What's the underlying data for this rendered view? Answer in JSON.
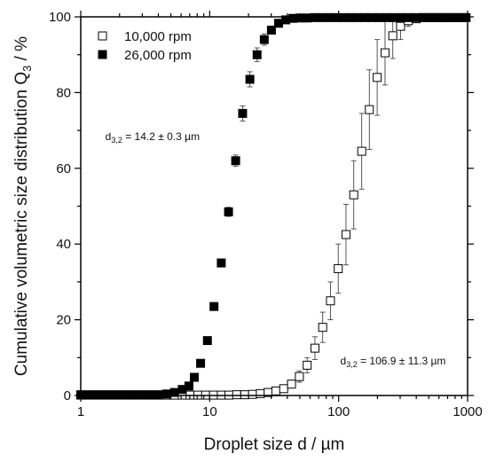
{
  "chart_data": {
    "type": "scatter",
    "title": "",
    "xlabel": "Droplet size d / µm",
    "ylabel_main": "Cumulative volumetric size distribution Q",
    "ylabel_sub": "3",
    "ylabel_unit": " / %",
    "xscale": "log",
    "xlim": [
      1,
      1000
    ],
    "ylim": [
      0,
      100
    ],
    "x_ticks": [
      1,
      10,
      100,
      1000
    ],
    "x_tick_labels": [
      "1",
      "10",
      "100",
      "1000"
    ],
    "y_ticks": [
      0,
      20,
      40,
      60,
      80,
      100
    ],
    "y_tick_labels": [
      "0",
      "20",
      "40",
      "60",
      "80",
      "100"
    ],
    "grid": false,
    "legend": {
      "position": "top-left",
      "items": [
        {
          "label": "10,000 rpm",
          "marker": "open-square"
        },
        {
          "label": "26,000 rpm",
          "marker": "filled-square"
        }
      ]
    },
    "series": [
      {
        "name": "10,000 rpm",
        "marker": "open-square",
        "points": [
          {
            "x": 1.0,
            "y": 0.1
          },
          {
            "x": 1.15,
            "y": 0.1
          },
          {
            "x": 1.32,
            "y": 0.1
          },
          {
            "x": 1.52,
            "y": 0.1
          },
          {
            "x": 1.75,
            "y": 0.1
          },
          {
            "x": 2.01,
            "y": 0.1
          },
          {
            "x": 2.31,
            "y": 0.1
          },
          {
            "x": 2.66,
            "y": 0.1
          },
          {
            "x": 3.05,
            "y": 0.1
          },
          {
            "x": 3.51,
            "y": 0.1
          },
          {
            "x": 4.03,
            "y": 0.1
          },
          {
            "x": 4.64,
            "y": 0.1
          },
          {
            "x": 5.33,
            "y": 0.1
          },
          {
            "x": 6.13,
            "y": 0.1
          },
          {
            "x": 7.05,
            "y": 0.1
          },
          {
            "x": 8.1,
            "y": 0.1
          },
          {
            "x": 9.3,
            "y": 0.1
          },
          {
            "x": 10.7,
            "y": 0.1
          },
          {
            "x": 12.3,
            "y": 0.1
          },
          {
            "x": 14.1,
            "y": 0.1
          },
          {
            "x": 16.2,
            "y": 0.2
          },
          {
            "x": 18.7,
            "y": 0.2
          },
          {
            "x": 21.5,
            "y": 0.3,
            "err": 0.2
          },
          {
            "x": 24.7,
            "y": 0.5,
            "err": 0.3
          },
          {
            "x": 28.4,
            "y": 0.8,
            "err": 0.5
          },
          {
            "x": 32.6,
            "y": 1.2,
            "err": 0.6
          },
          {
            "x": 37.5,
            "y": 1.8,
            "err": 0.8
          },
          {
            "x": 43.1,
            "y": 3.0,
            "err": 1.0
          },
          {
            "x": 49.6,
            "y": 5.0,
            "err": 1.5
          },
          {
            "x": 57.0,
            "y": 8.0,
            "err": 2.0
          },
          {
            "x": 65.5,
            "y": 12.5,
            "err": 3.0
          },
          {
            "x": 75.2,
            "y": 18.0,
            "err": 4.0
          },
          {
            "x": 86.4,
            "y": 25.0,
            "err": 5.0
          },
          {
            "x": 99.3,
            "y": 33.5,
            "err": 6.5
          },
          {
            "x": 114,
            "y": 42.5,
            "err": 8.0
          },
          {
            "x": 131,
            "y": 53.0,
            "err": 9.0
          },
          {
            "x": 151,
            "y": 64.5,
            "err": 10.0
          },
          {
            "x": 173,
            "y": 75.5,
            "err": 10.5
          },
          {
            "x": 199,
            "y": 84.0,
            "err": 10.0
          },
          {
            "x": 229,
            "y": 90.5,
            "err": 8.5
          },
          {
            "x": 263,
            "y": 95.0,
            "err": 6.0
          },
          {
            "x": 302,
            "y": 97.5,
            "err": 3.5
          },
          {
            "x": 347,
            "y": 99.0,
            "err": 1.5
          },
          {
            "x": 399,
            "y": 99.5
          },
          {
            "x": 459,
            "y": 99.8
          },
          {
            "x": 527,
            "y": 99.8
          },
          {
            "x": 606,
            "y": 99.8
          },
          {
            "x": 696,
            "y": 99.8
          },
          {
            "x": 800,
            "y": 99.8
          },
          {
            "x": 920,
            "y": 99.8
          }
        ]
      },
      {
        "name": "26,000 rpm",
        "marker": "filled-square",
        "points": [
          {
            "x": 1.0,
            "y": 0.2
          },
          {
            "x": 1.15,
            "y": 0.2
          },
          {
            "x": 1.32,
            "y": 0.2
          },
          {
            "x": 1.52,
            "y": 0.2
          },
          {
            "x": 1.75,
            "y": 0.2
          },
          {
            "x": 2.01,
            "y": 0.2
          },
          {
            "x": 2.31,
            "y": 0.2
          },
          {
            "x": 2.66,
            "y": 0.2
          },
          {
            "x": 3.05,
            "y": 0.2
          },
          {
            "x": 3.51,
            "y": 0.2
          },
          {
            "x": 4.03,
            "y": 0.2
          },
          {
            "x": 4.64,
            "y": 0.4
          },
          {
            "x": 5.33,
            "y": 0.8
          },
          {
            "x": 6.13,
            "y": 1.6
          },
          {
            "x": 6.9,
            "y": 2.5
          },
          {
            "x": 7.6,
            "y": 4.8
          },
          {
            "x": 8.5,
            "y": 8.5
          },
          {
            "x": 9.6,
            "y": 14.5
          },
          {
            "x": 10.8,
            "y": 23.5
          },
          {
            "x": 12.3,
            "y": 35.0,
            "err": 1.0
          },
          {
            "x": 14.0,
            "y": 48.5,
            "err": 1.2
          },
          {
            "x": 15.9,
            "y": 62.0,
            "err": 1.5
          },
          {
            "x": 18.0,
            "y": 74.5,
            "err": 2.0
          },
          {
            "x": 20.5,
            "y": 83.5,
            "err": 2.0
          },
          {
            "x": 23.3,
            "y": 90.0,
            "err": 1.8
          },
          {
            "x": 26.5,
            "y": 94.0,
            "err": 1.5
          },
          {
            "x": 30.1,
            "y": 96.5,
            "err": 1.0
          },
          {
            "x": 34.2,
            "y": 98.3,
            "err": 0.6
          },
          {
            "x": 38.9,
            "y": 99.2
          },
          {
            "x": 44.2,
            "y": 99.6
          },
          {
            "x": 50.3,
            "y": 99.7
          },
          {
            "x": 57.2,
            "y": 99.7
          },
          {
            "x": 65,
            "y": 99.8
          },
          {
            "x": 74,
            "y": 99.8
          },
          {
            "x": 84,
            "y": 99.8
          },
          {
            "x": 95.5,
            "y": 99.8
          },
          {
            "x": 109,
            "y": 99.8
          },
          {
            "x": 124,
            "y": 99.8
          },
          {
            "x": 141,
            "y": 99.8
          },
          {
            "x": 160,
            "y": 99.8
          },
          {
            "x": 182,
            "y": 99.8
          },
          {
            "x": 207,
            "y": 99.8
          },
          {
            "x": 236,
            "y": 99.8
          },
          {
            "x": 268,
            "y": 99.8
          },
          {
            "x": 305,
            "y": 99.8
          },
          {
            "x": 347,
            "y": 99.8
          },
          {
            "x": 395,
            "y": 99.8
          },
          {
            "x": 449,
            "y": 99.8
          },
          {
            "x": 511,
            "y": 99.8
          },
          {
            "x": 581,
            "y": 99.8
          },
          {
            "x": 661,
            "y": 99.8
          },
          {
            "x": 752,
            "y": 99.8
          },
          {
            "x": 855,
            "y": 99.8
          },
          {
            "x": 973,
            "y": 99.8
          }
        ]
      }
    ],
    "annotations": [
      {
        "id": "d32-26000",
        "prefix": "d",
        "sub": "3,2",
        "text": " = 14.2 ± 0.3 µm",
        "x": 1.55,
        "y": 67.5
      },
      {
        "id": "d32-10000",
        "prefix": "d",
        "sub": "3,2",
        "text": " = 106.9 ± 11.3 µm",
        "x": 103,
        "y": 8.2
      }
    ]
  }
}
